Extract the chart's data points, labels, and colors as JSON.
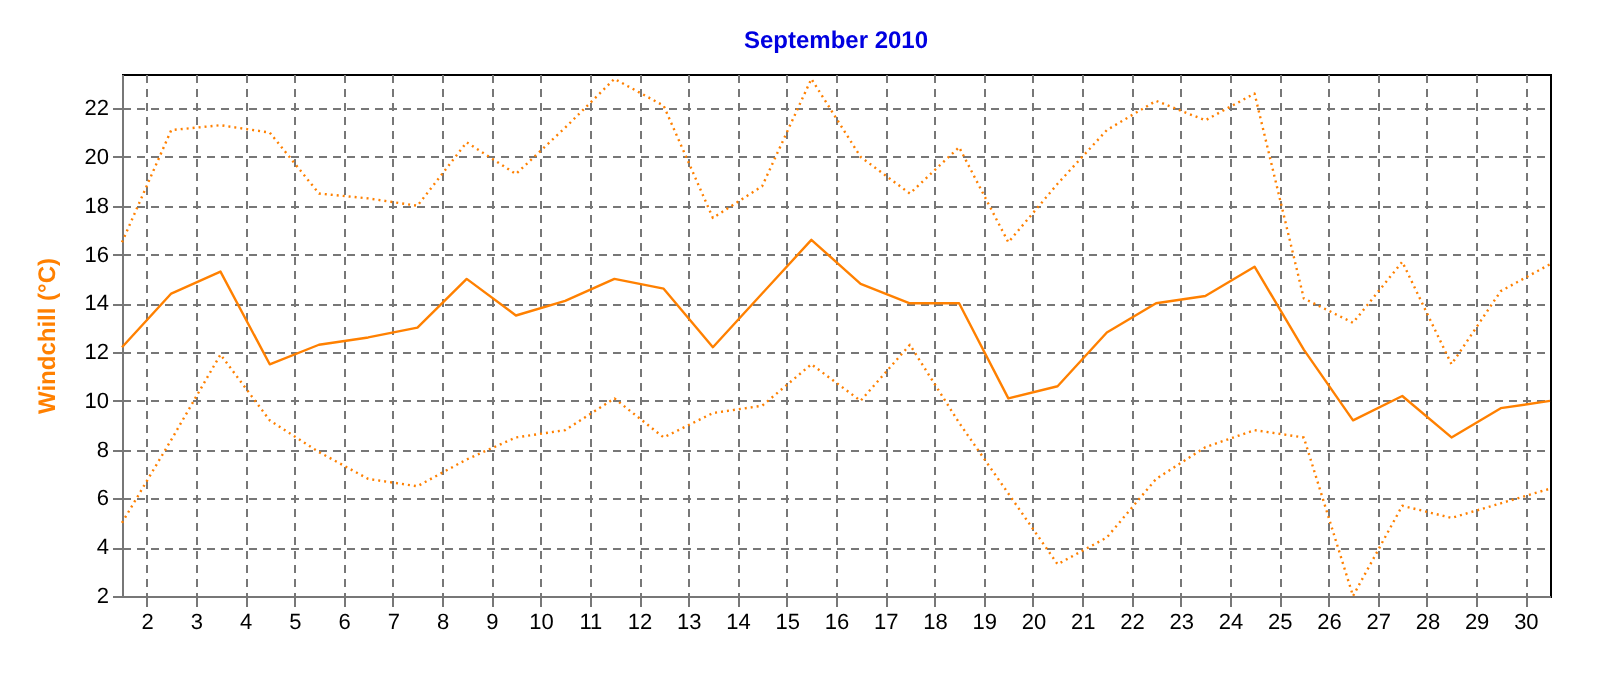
{
  "chart_data": {
    "type": "line",
    "title": "September 2010",
    "ylabel": "Windchill  (°C)",
    "x": [
      1.5,
      2.5,
      3.5,
      4.5,
      5.5,
      6.5,
      7.5,
      8.5,
      9.5,
      10.5,
      11.5,
      12.5,
      13.5,
      14.5,
      15.5,
      16.5,
      17.5,
      18.5,
      19.5,
      20.5,
      21.5,
      22.5,
      23.5,
      24.5,
      25.5,
      26.5,
      27.5,
      28.5,
      29.5,
      30.5
    ],
    "xlim": [
      1.5,
      30.5
    ],
    "xticks": [
      2,
      3,
      4,
      5,
      6,
      7,
      8,
      9,
      10,
      11,
      12,
      13,
      14,
      15,
      16,
      17,
      18,
      19,
      20,
      21,
      22,
      23,
      24,
      25,
      26,
      27,
      28,
      29,
      30
    ],
    "ylim": [
      2,
      23.4
    ],
    "yticks": [
      2,
      4,
      6,
      8,
      10,
      12,
      14,
      16,
      18,
      20,
      22
    ],
    "grid": true,
    "marker": "none",
    "series": [
      {
        "color": "#ff8000",
        "line_style": "dotted",
        "values": [
          16.5,
          21.1,
          21.3,
          21.0,
          18.5,
          18.3,
          18.0,
          20.6,
          19.3,
          21.2,
          23.2,
          22.1,
          17.5,
          18.8,
          23.2,
          20.0,
          18.5,
          20.4,
          16.5,
          18.9,
          21.1,
          22.3,
          21.5,
          22.6,
          14.2,
          13.2,
          15.7,
          11.5,
          14.5,
          15.6
        ]
      },
      {
        "color": "#ff8000",
        "line_style": "solid",
        "values": [
          12.2,
          14.4,
          15.3,
          11.5,
          12.3,
          12.6,
          13.0,
          15.0,
          13.5,
          14.1,
          15.0,
          14.6,
          12.2,
          14.4,
          16.6,
          14.8,
          14.0,
          14.0,
          10.1,
          10.6,
          12.8,
          14.0,
          14.3,
          15.5,
          12.1,
          9.2,
          10.2,
          8.5,
          9.7,
          10.0
        ]
      },
      {
        "color": "#ff8000",
        "line_style": "dotted",
        "values": [
          5.0,
          8.4,
          11.9,
          9.2,
          7.9,
          6.8,
          6.5,
          7.6,
          8.5,
          8.8,
          10.1,
          8.5,
          9.5,
          9.8,
          11.5,
          10.0,
          12.3,
          9.1,
          6.2,
          3.3,
          4.4,
          6.8,
          8.1,
          8.8,
          8.5,
          2.0,
          5.7,
          5.2,
          5.8,
          6.4
        ]
      }
    ]
  }
}
